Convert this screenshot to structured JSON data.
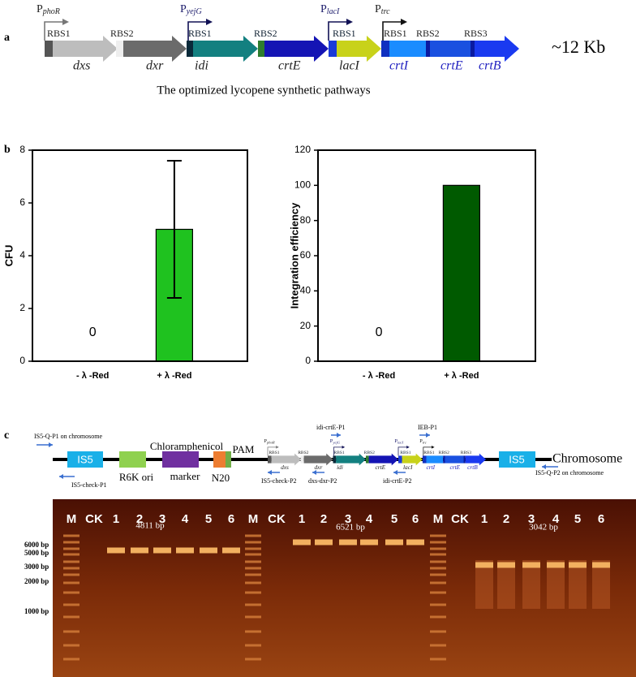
{
  "panel_a": {
    "label": "a",
    "promoters": [
      {
        "prefix": "P",
        "name": "phoR"
      },
      {
        "prefix": "P",
        "name": "yejG"
      },
      {
        "prefix": "P",
        "name": "lacI"
      },
      {
        "prefix": "P",
        "name": "trc"
      }
    ],
    "genes": [
      {
        "rbs": "RBS1",
        "name": "dxs"
      },
      {
        "rbs": "RBS2",
        "name": "dxr"
      },
      {
        "rbs": "RBS1",
        "name": "idi"
      },
      {
        "rbs": "RBS2",
        "name": "crtE"
      },
      {
        "rbs": "RBS1",
        "name": "lacI"
      },
      {
        "rbs": "RBS1",
        "name": "crtI"
      },
      {
        "rbs": "RBS2",
        "name": "crtE"
      },
      {
        "rbs": "RBS3",
        "name": "crtB"
      }
    ],
    "size": "~12 Kb",
    "caption": "The optimized lycopene synthetic pathways"
  },
  "panel_b": {
    "label": "b"
  },
  "chart_data": [
    {
      "type": "bar",
      "ylabel": "CFU",
      "categories": [
        "- λ -Red",
        "+ λ -Red"
      ],
      "values": [
        0,
        5
      ],
      "errors": [
        null,
        2.6
      ],
      "color": "#1fc21f",
      "ylim": [
        0,
        8
      ],
      "yticks": [
        0,
        2,
        4,
        6,
        8
      ]
    },
    {
      "type": "bar",
      "ylabel": "Integration efficiency",
      "categories": [
        "- λ -Red",
        "+ λ -Red"
      ],
      "values": [
        0,
        100
      ],
      "color": "#005a00",
      "ylim": [
        0,
        120
      ],
      "yticks": [
        0,
        20,
        40,
        60,
        80,
        100,
        120
      ]
    }
  ],
  "panel_c": {
    "label": "c",
    "elements": {
      "is5": "IS5",
      "r6k": "R6K ori",
      "chl": "Chloramphenicol",
      "marker": "marker",
      "pam": "PAM",
      "n20": "N20",
      "chromosome": "Chromosome"
    },
    "primers": [
      "IS5-Q-P1 on chromosome",
      "IS5-check-P1",
      "IS5-check-P2",
      "dxs-dxr-P2",
      "idi-crtE-P1",
      "idi-crtE-P2",
      "IEB-P1",
      "IS5-Q-P2 on chromosome"
    ],
    "lanes": [
      "M",
      "CK",
      "1",
      "2",
      "3",
      "4",
      "5",
      "6",
      "M",
      "CK",
      "1",
      "2",
      "3",
      "4",
      "5",
      "6",
      "M",
      "CK",
      "1",
      "2",
      "3",
      "4",
      "5",
      "6"
    ],
    "products": [
      "4811 bp",
      "6521 bp",
      "3042 bp"
    ],
    "ladder": [
      "6000 bp",
      "5000 bp",
      "3000 bp",
      "2000 bp",
      "1000 bp"
    ]
  }
}
